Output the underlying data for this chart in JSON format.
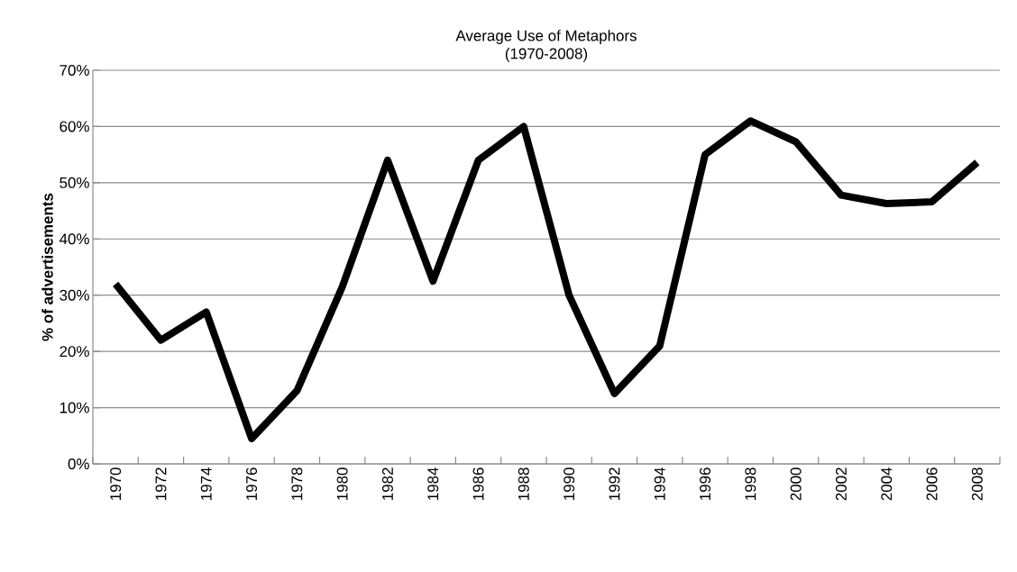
{
  "chart_data": {
    "type": "line",
    "title": "Average Use of Metaphors",
    "subtitle": "(1970-2008)",
    "ylabel": "% of advertisements",
    "categories": [
      "1970",
      "1972",
      "1974",
      "1976",
      "1978",
      "1980",
      "1982",
      "1984",
      "1986",
      "1988",
      "1990",
      "1992",
      "1994",
      "1996",
      "1998",
      "2000",
      "2002",
      "2004",
      "2006",
      "2008"
    ],
    "series": [
      {
        "color": "#000000",
        "values": [
          32,
          22,
          27,
          4.5,
          13,
          31.5,
          54,
          32.5,
          54,
          60,
          30,
          12.5,
          21,
          55,
          61,
          57.3,
          47.8,
          46.3,
          46.6,
          53.6
        ]
      }
    ],
    "ylim": [
      0,
      70
    ],
    "yticks": [
      {
        "value": 0,
        "label": "0%"
      },
      {
        "value": 10,
        "label": "10%"
      },
      {
        "value": 20,
        "label": "20%"
      },
      {
        "value": 30,
        "label": "30%"
      },
      {
        "value": 40,
        "label": "40%"
      },
      {
        "value": 50,
        "label": "50%"
      },
      {
        "value": 60,
        "label": "60%"
      },
      {
        "value": 70,
        "label": "70%"
      }
    ],
    "grid": "y",
    "marker": "none",
    "line_style": "solid"
  }
}
